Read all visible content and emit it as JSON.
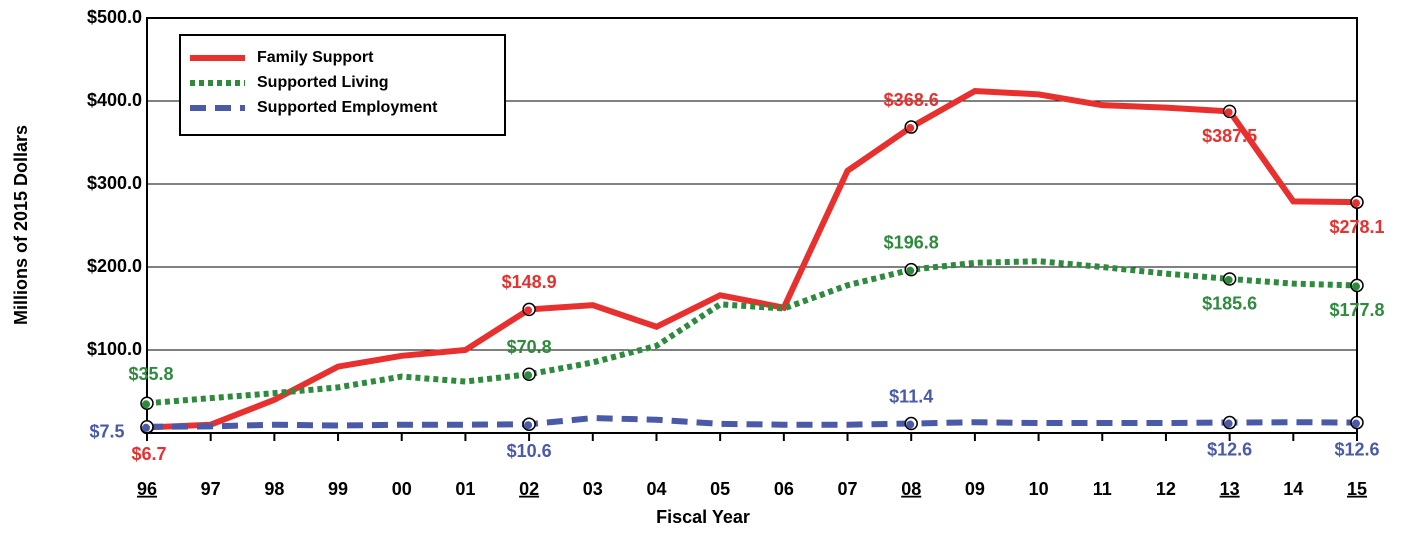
{
  "chart_data": {
    "type": "line",
    "y_label": "Millions of 2015 Dollars",
    "x_label": "Fiscal Year",
    "categories": [
      "96",
      "97",
      "98",
      "99",
      "00",
      "01",
      "02",
      "03",
      "04",
      "05",
      "06",
      "07",
      "08",
      "09",
      "10",
      "11",
      "12",
      "13",
      "14",
      "15"
    ],
    "series": [
      {
        "name": "Family Support",
        "color": "#e8312f",
        "style": "solid",
        "values": [
          6.7,
          10,
          40,
          80,
          93,
          100,
          148.9,
          154,
          128,
          166,
          151,
          316,
          368.6,
          412,
          408,
          395,
          392,
          387.5,
          279,
          278.1
        ],
        "value_labels": [
          "$6.7",
          null,
          null,
          null,
          null,
          null,
          "$148.9",
          null,
          null,
          null,
          null,
          null,
          "$368.6",
          null,
          null,
          null,
          null,
          "$387.5",
          null,
          "$278.1"
        ]
      },
      {
        "name": "Supported Living",
        "color": "#2e8b3e",
        "style": "dotted",
        "values": [
          35.8,
          42,
          48,
          55,
          68,
          62,
          70.8,
          85,
          105,
          155,
          150,
          178,
          196.8,
          205,
          207,
          200,
          192,
          185.6,
          180,
          177.8
        ],
        "value_labels": [
          "$35.8",
          null,
          null,
          null,
          null,
          null,
          "$70.8",
          null,
          null,
          null,
          null,
          null,
          "$196.8",
          null,
          null,
          null,
          null,
          "$185.6",
          null,
          "$177.8"
        ]
      },
      {
        "name": "Supported Employment",
        "color": "#4a5aa8",
        "style": "dashed",
        "values": [
          7.5,
          8,
          10,
          9,
          10,
          10,
          10.6,
          18,
          16,
          11,
          10,
          10,
          11.4,
          13,
          12,
          12,
          12,
          12.6,
          13,
          12.6
        ],
        "value_labels": [
          "$7.5",
          null,
          null,
          null,
          null,
          null,
          "$10.6",
          null,
          null,
          null,
          null,
          null,
          "$11.4",
          null,
          null,
          null,
          null,
          "$12.6",
          null,
          "$12.6"
        ]
      }
    ],
    "ylim": [
      0,
      500
    ],
    "yticks": [
      {
        "value": 100,
        "label": "$100.0"
      },
      {
        "value": 200,
        "label": "$200.0"
      },
      {
        "value": 300,
        "label": "$300.0"
      },
      {
        "value": 400,
        "label": "$400.0"
      },
      {
        "value": 500,
        "label": "$500.0"
      }
    ],
    "grid": true,
    "legend": "upper left"
  }
}
